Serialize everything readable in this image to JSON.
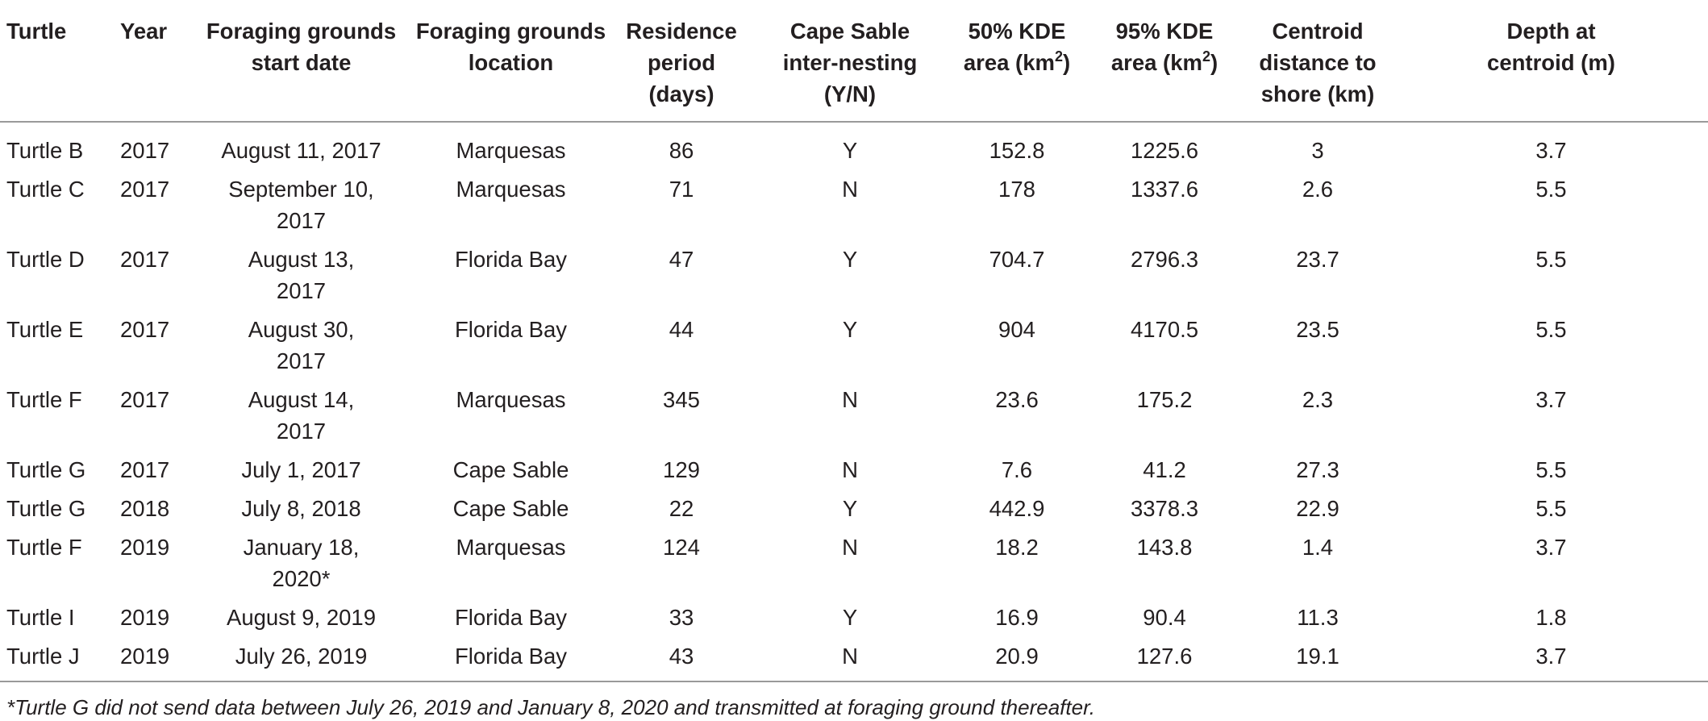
{
  "table": {
    "headers": [
      "Turtle",
      "Year",
      "Foraging grounds start date",
      "Foraging grounds location",
      "Residence period (days)",
      "Cape Sable inter-nesting (Y/N)",
      "50% KDE area (km2)",
      "95% KDE area (km2)",
      "Centroid distance to shore (km)",
      "Depth at centroid (m)"
    ],
    "header_lines": [
      [
        "Turtle"
      ],
      [
        "Year"
      ],
      [
        "Foraging grounds",
        "start date"
      ],
      [
        "Foraging grounds",
        "location"
      ],
      [
        "Residence",
        "period",
        "(days)"
      ],
      [
        "Cape Sable",
        "inter-nesting",
        "(Y/N)"
      ],
      [
        "50% KDE",
        "area (km",
        "2",
        ")"
      ],
      [
        "95% KDE",
        "area (km",
        "2",
        ")"
      ],
      [
        "Centroid",
        "distance to",
        "shore (km)"
      ],
      [
        "Depth at",
        "centroid (m)"
      ]
    ],
    "rows": [
      [
        "Turtle B",
        "2017",
        "August 11, 2017",
        "Marquesas",
        "86",
        "Y",
        "152.8",
        "1225.6",
        "3",
        "3.7"
      ],
      [
        "Turtle C",
        "2017",
        "September 10, 2017",
        "Marquesas",
        "71",
        "N",
        "178",
        "1337.6",
        "2.6",
        "5.5"
      ],
      [
        "Turtle D",
        "2017",
        "August 13, 2017",
        "Florida Bay",
        "47",
        "Y",
        "704.7",
        "2796.3",
        "23.7",
        "5.5"
      ],
      [
        "Turtle E",
        "2017",
        "August 30, 2017",
        "Florida Bay",
        "44",
        "Y",
        "904",
        "4170.5",
        "23.5",
        "5.5"
      ],
      [
        "Turtle F",
        "2017",
        "August 14, 2017",
        "Marquesas",
        "345",
        "N",
        "23.6",
        "175.2",
        "2.3",
        "3.7"
      ],
      [
        "Turtle G",
        "2017",
        "July 1, 2017",
        "Cape Sable",
        "129",
        "N",
        "7.6",
        "41.2",
        "27.3",
        "5.5"
      ],
      [
        "Turtle G",
        "2018",
        "July 8, 2018",
        "Cape Sable",
        "22",
        "Y",
        "442.9",
        "3378.3",
        "22.9",
        "5.5"
      ],
      [
        "Turtle F",
        "2019",
        "January 18, 2020*",
        "Marquesas",
        "124",
        "N",
        "18.2",
        "143.8",
        "1.4",
        "3.7"
      ],
      [
        "Turtle I",
        "2019",
        "August 9, 2019",
        "Florida Bay",
        "33",
        "Y",
        "16.9",
        "90.4",
        "11.3",
        "1.8"
      ],
      [
        "Turtle J",
        "2019",
        "July 26, 2019",
        "Florida Bay",
        "43",
        "N",
        "20.9",
        "127.6",
        "19.1",
        "3.7"
      ]
    ]
  },
  "footnote": "*Turtle G did not send data between July 26, 2019 and January 8, 2020 and transmitted at foraging ground thereafter."
}
